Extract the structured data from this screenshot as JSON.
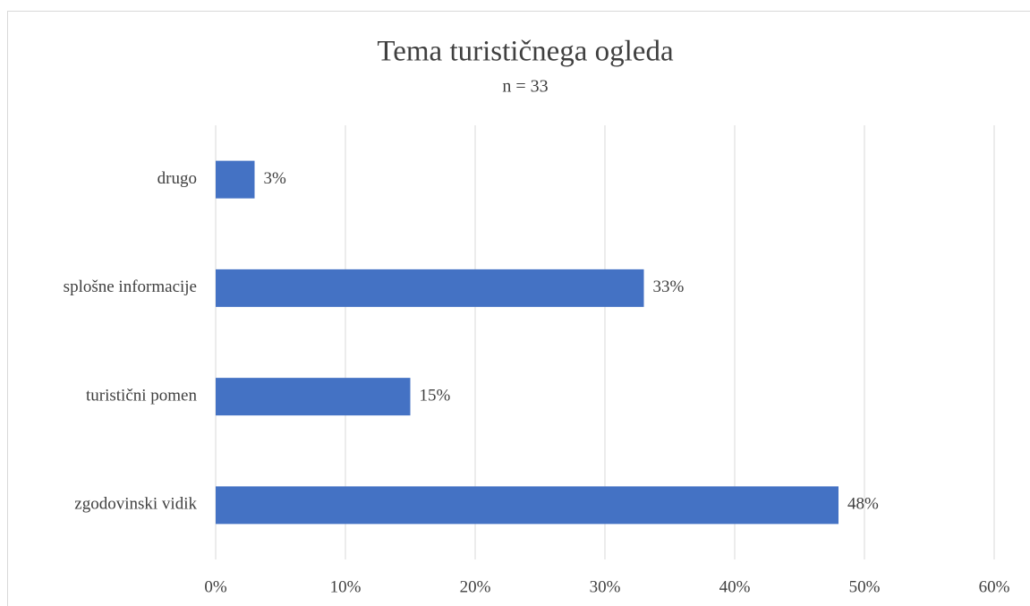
{
  "chart_data": {
    "type": "hbar",
    "title": "Tema turističnega ogleda",
    "subtitle": "n = 33",
    "categories": [
      "drugo",
      "splošne informacije",
      "turistični pomen",
      "zgodovinski vidik"
    ],
    "values": [
      3,
      33,
      15,
      48
    ],
    "value_labels": [
      "3%",
      "33%",
      "15%",
      "48%"
    ],
    "color": "#4472c4",
    "xlim": [
      0,
      60
    ],
    "xticks": [
      {
        "value": 0,
        "label": "0%"
      },
      {
        "value": 10,
        "label": "10%"
      },
      {
        "value": 20,
        "label": "20%"
      },
      {
        "value": 30,
        "label": "30%"
      },
      {
        "value": 40,
        "label": "40%"
      },
      {
        "value": 50,
        "label": "50%"
      },
      {
        "value": 60,
        "label": "60%"
      }
    ],
    "grid": true
  }
}
